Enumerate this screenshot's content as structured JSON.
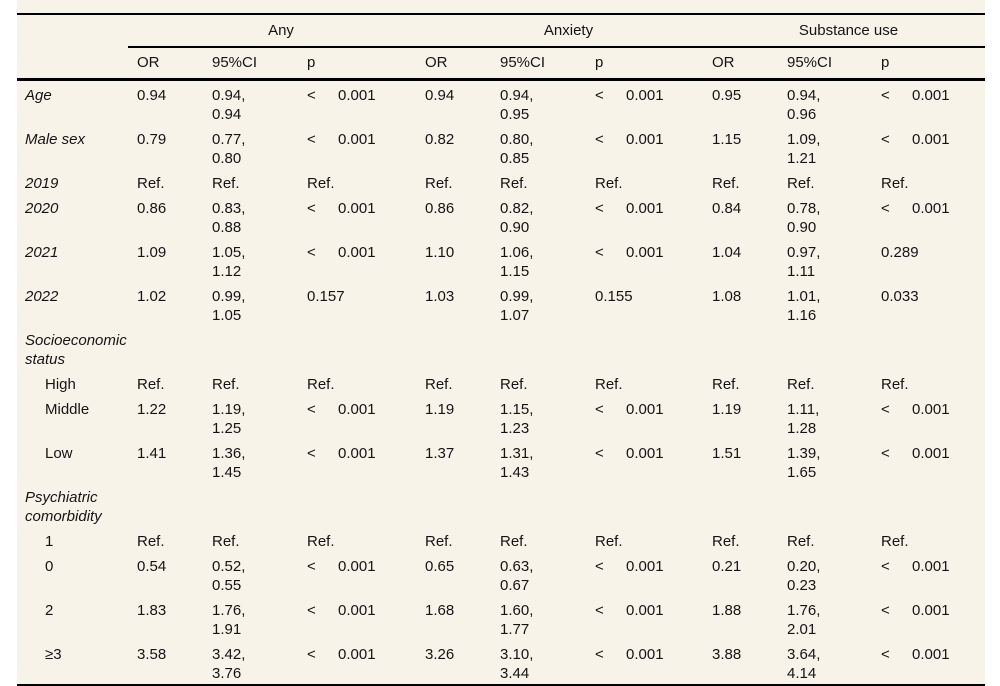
{
  "table": {
    "groups": [
      "Any",
      "Anxiety",
      "Substance use"
    ],
    "columns": [
      "OR",
      "95%CI",
      "p"
    ],
    "rows": [
      {
        "label": "Age",
        "style": "main",
        "cells": [
          [
            "0.94",
            "0.94, 0.94",
            "< 0.001"
          ],
          [
            "0.94",
            "0.94, 0.95",
            "< 0.001"
          ],
          [
            "0.95",
            "0.94, 0.96",
            "< 0.001"
          ]
        ]
      },
      {
        "label": "Male sex",
        "style": "main",
        "cells": [
          [
            "0.79",
            "0.77, 0.80",
            "< 0.001"
          ],
          [
            "0.82",
            "0.80, 0.85",
            "< 0.001"
          ],
          [
            "1.15",
            "1.09, 1.21",
            "< 0.001"
          ]
        ]
      },
      {
        "label": "2019",
        "style": "main",
        "cells": [
          [
            "Ref.",
            "Ref.",
            "Ref."
          ],
          [
            "Ref.",
            "Ref.",
            "Ref."
          ],
          [
            "Ref.",
            "Ref.",
            "Ref."
          ]
        ]
      },
      {
        "label": "2020",
        "style": "main",
        "cells": [
          [
            "0.86",
            "0.83, 0.88",
            "< 0.001"
          ],
          [
            "0.86",
            "0.82, 0.90",
            "< 0.001"
          ],
          [
            "0.84",
            "0.78, 0.90",
            "< 0.001"
          ]
        ]
      },
      {
        "label": "2021",
        "style": "main",
        "cells": [
          [
            "1.09",
            "1.05, 1.12",
            "< 0.001"
          ],
          [
            "1.10",
            "1.06, 1.15",
            "< 0.001"
          ],
          [
            "1.04",
            "0.97, 1.11",
            "0.289"
          ]
        ]
      },
      {
        "label": "2022",
        "style": "main",
        "cells": [
          [
            "1.02",
            "0.99, 1.05",
            "0.157"
          ],
          [
            "1.03",
            "0.99, 1.07",
            "0.155"
          ],
          [
            "1.08",
            "1.01, 1.16",
            "0.033"
          ]
        ]
      },
      {
        "label": "Socioeconomic status",
        "style": "section"
      },
      {
        "label": "High",
        "style": "sub",
        "cells": [
          [
            "Ref.",
            "Ref.",
            "Ref."
          ],
          [
            "Ref.",
            "Ref.",
            "Ref."
          ],
          [
            "Ref.",
            "Ref.",
            "Ref."
          ]
        ]
      },
      {
        "label": "Middle",
        "style": "sub",
        "cells": [
          [
            "1.22",
            "1.19, 1.25",
            "< 0.001"
          ],
          [
            "1.19",
            "1.15, 1.23",
            "< 0.001"
          ],
          [
            "1.19",
            "1.11, 1.28",
            "< 0.001"
          ]
        ]
      },
      {
        "label": "Low",
        "style": "sub",
        "cells": [
          [
            "1.41",
            "1.36, 1.45",
            "< 0.001"
          ],
          [
            "1.37",
            "1.31, 1.43",
            "< 0.001"
          ],
          [
            "1.51",
            "1.39, 1.65",
            "< 0.001"
          ]
        ]
      },
      {
        "label": "Psychiatric comorbidity",
        "style": "section"
      },
      {
        "label": "1",
        "style": "sub",
        "cells": [
          [
            "Ref.",
            "Ref.",
            "Ref."
          ],
          [
            "Ref.",
            "Ref.",
            "Ref."
          ],
          [
            "Ref.",
            "Ref.",
            "Ref."
          ]
        ]
      },
      {
        "label": "0",
        "style": "sub",
        "cells": [
          [
            "0.54",
            "0.52, 0.55",
            "< 0.001"
          ],
          [
            "0.65",
            "0.63, 0.67",
            "< 0.001"
          ],
          [
            "0.21",
            "0.20, 0.23",
            "< 0.001"
          ]
        ]
      },
      {
        "label": "2",
        "style": "sub",
        "cells": [
          [
            "1.83",
            "1.76, 1.91",
            "< 0.001"
          ],
          [
            "1.68",
            "1.60, 1.77",
            "< 0.001"
          ],
          [
            "1.88",
            "1.76, 2.01",
            "< 0.001"
          ]
        ]
      },
      {
        "label": "≥3",
        "style": "sub",
        "cells": [
          [
            "3.58",
            "3.42, 3.76",
            "< 0.001"
          ],
          [
            "3.26",
            "3.10, 3.44",
            "< 0.001"
          ],
          [
            "3.88",
            "3.64, 4.14",
            "< 0.001"
          ]
        ]
      }
    ],
    "colors": {
      "background": "#f7f3e9",
      "rule": "#000000",
      "text": "#141414"
    }
  }
}
